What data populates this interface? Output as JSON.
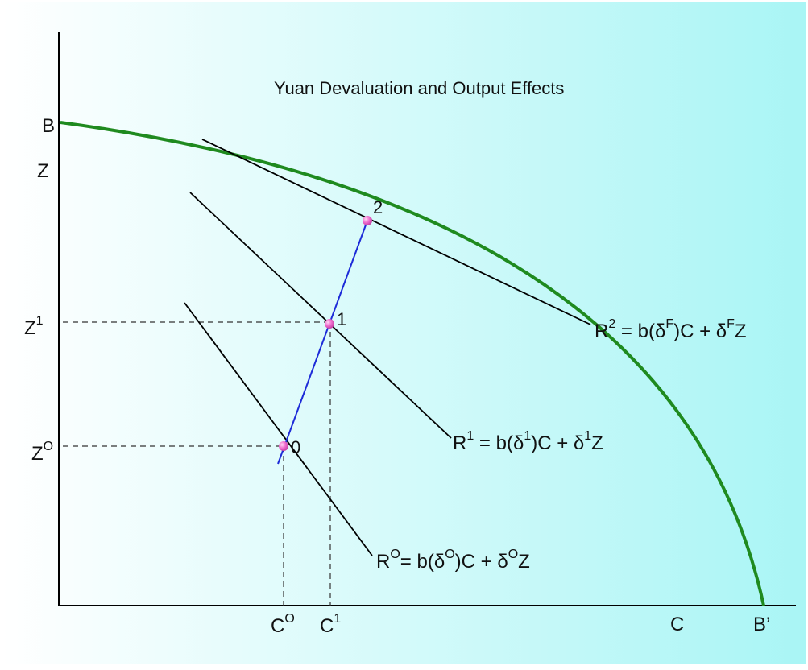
{
  "title": "Yuan Devaluation and Output Effects",
  "axes": {
    "y_top_label": "B",
    "y_axis_label": "Z",
    "z1": {
      "base": "Z",
      "sup": "1"
    },
    "z0": {
      "base": "Z",
      "sup": "O"
    },
    "c0": {
      "base": "C",
      "sup": "O"
    },
    "c1": {
      "base": "C",
      "sup": "1"
    },
    "x_axis_label": "C",
    "x_end_label": "B’"
  },
  "points": [
    "0",
    "1",
    "2"
  ],
  "lines": {
    "r2": {
      "head": "R",
      "head_sup": "2",
      "pre": " = b(δ",
      "arg_sup": "F",
      "mid": ")C + δ",
      "coef_sup": "F",
      "tail": "Z"
    },
    "r1": {
      "head": "R",
      "head_sup": "1",
      "pre": " = b(δ",
      "arg_sup": "1",
      "mid": ")C + δ",
      "coef_sup": "1",
      "tail": "Z"
    },
    "r0": {
      "head": "R",
      "head_sup": "O",
      "pre": "= b(δ",
      "arg_sup": "O",
      "mid": ")C + δ",
      "coef_sup": "O",
      "tail": "Z"
    }
  },
  "colors": {
    "frontier": "#1f8a1f",
    "expansion_path": "#1d2bd8",
    "point_fill": "#f06fcf",
    "background_left": "#ffffff",
    "background_right": "#a9f5f5"
  }
}
